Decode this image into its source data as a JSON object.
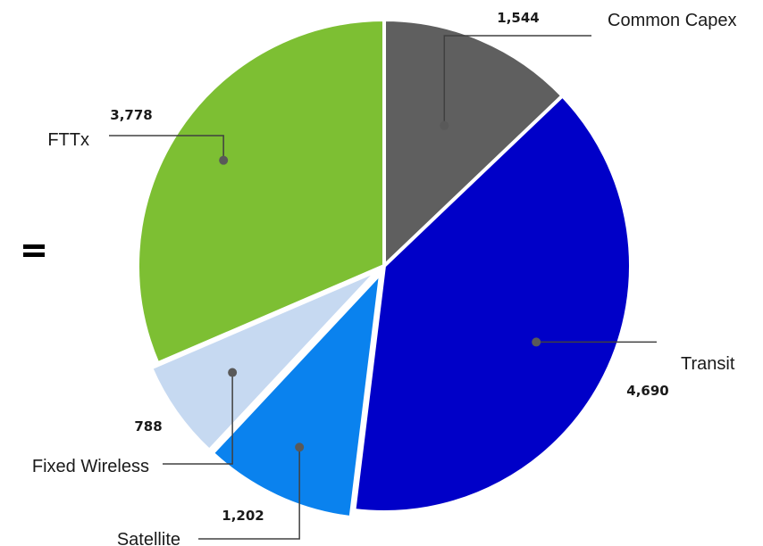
{
  "chart_data": {
    "type": "pie",
    "title": "",
    "categories": [
      "Common Capex",
      "Transit",
      "Satellite",
      "Fixed Wireless",
      "FTTx"
    ],
    "values": [
      1544,
      4690,
      1202,
      788,
      3778
    ],
    "value_labels": [
      "1,544",
      "4,690",
      "1,202",
      "788",
      "3,778"
    ],
    "colors": [
      "#5f5f5f",
      "#0000c8",
      "#0a82ee",
      "#c6d9f1",
      "#7dbf33"
    ],
    "start_angle_deg": 0,
    "direction": "clockwise",
    "legend": "none",
    "slice_separator_color": "#ffffff"
  },
  "decorations": {
    "equals_sign_color": "#000000",
    "leader_line_color": "#404040"
  }
}
